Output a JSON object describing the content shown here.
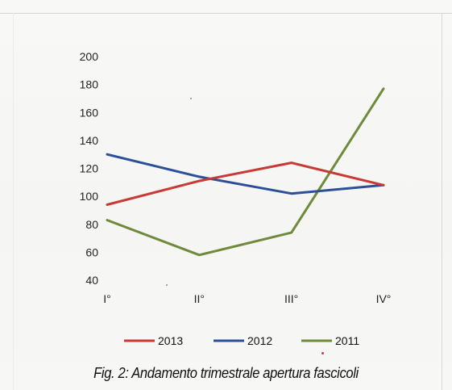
{
  "chart_data": {
    "type": "line",
    "title": "",
    "xlabel": "",
    "ylabel": "",
    "categories": [
      "I°",
      "II°",
      "III°",
      "IV°"
    ],
    "ylim": [
      40,
      200
    ],
    "yticks": [
      40,
      60,
      80,
      100,
      120,
      140,
      160,
      180,
      200
    ],
    "grid": false,
    "legend_position": "bottom",
    "series": [
      {
        "name": "2013",
        "color": "#c83a35",
        "values": [
          94,
          111,
          124,
          108
        ]
      },
      {
        "name": "2012",
        "color": "#2d4f9a",
        "values": [
          130,
          114,
          102,
          108
        ]
      },
      {
        "name": "2011",
        "color": "#6e8a3a",
        "values": [
          83,
          58,
          74,
          177
        ]
      }
    ]
  },
  "caption": "Fig. 2: Andamento trimestrale apertura fascicoli"
}
